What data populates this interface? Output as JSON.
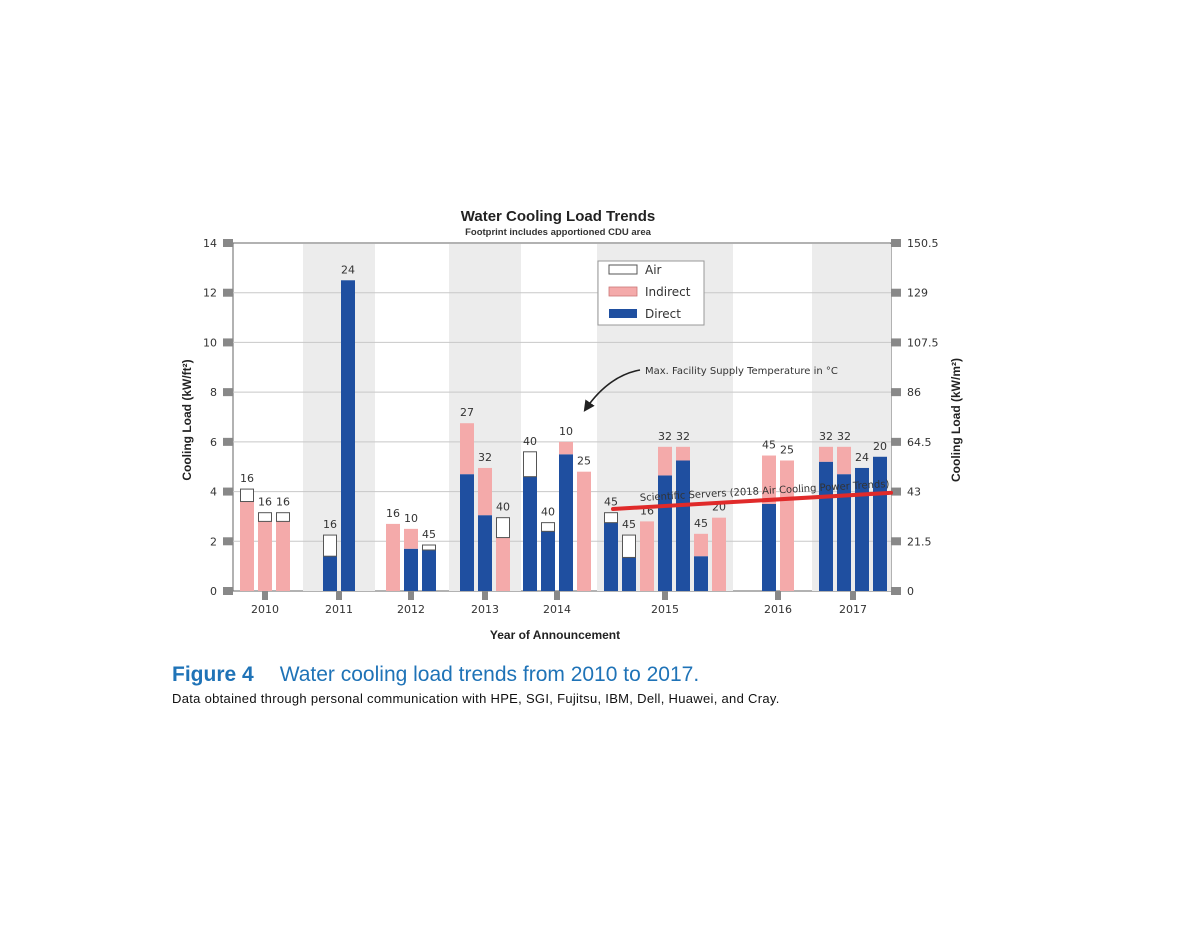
{
  "chart_data": {
    "type": "bar",
    "title": "Water Cooling Load Trends",
    "subtitle": "Footprint includes apportioned CDU area",
    "xlabel": "Year of Announcement",
    "ylabel_left": "Cooling Load (kW/ft²)",
    "ylabel_right": "Cooling Load (kW/m²)",
    "ylim": [
      0,
      14
    ],
    "yticks_left": [
      "0",
      "2",
      "4",
      "6",
      "8",
      "10",
      "12",
      "14"
    ],
    "yticks_right": [
      "0",
      "21.5",
      "43",
      "64.5",
      "86",
      "107.5",
      "129",
      "150.5"
    ],
    "years": [
      "2010",
      "2011",
      "2012",
      "2013",
      "2014",
      "2015",
      "2016",
      "2017"
    ],
    "legend": [
      {
        "name": "Air",
        "color": "#ffffff"
      },
      {
        "name": "Indirect",
        "color": "#f4aaaa"
      },
      {
        "name": "Direct",
        "color": "#1f4fa0"
      }
    ],
    "legend_placement": "top-center",
    "grid": "horizontal",
    "series_colors": {
      "air": "#ffffff",
      "indirect": "#f4aaaa",
      "direct": "#1f4fa0"
    },
    "bars": [
      {
        "year": "2010",
        "label": "16",
        "direct": 0,
        "indirect": 3.6,
        "air": 0.5
      },
      {
        "year": "2010",
        "label": "16",
        "direct": 0,
        "indirect": 2.8,
        "air": 0.35
      },
      {
        "year": "2010",
        "label": "16",
        "direct": 0,
        "indirect": 2.8,
        "air": 0.35
      },
      {
        "year": "2011",
        "label": "16",
        "direct": 1.4,
        "indirect": 0,
        "air": 0.85
      },
      {
        "year": "2011",
        "label": "24",
        "direct": 12.5,
        "indirect": 0,
        "air": 0
      },
      {
        "year": "2012",
        "label": "16",
        "direct": 0,
        "indirect": 2.7,
        "air": 0
      },
      {
        "year": "2012",
        "label": "10",
        "direct": 1.7,
        "indirect": 0.8,
        "air": 0
      },
      {
        "year": "2012",
        "label": "45",
        "direct": 1.65,
        "indirect": 0,
        "air": 0.2
      },
      {
        "year": "2013",
        "label": "27",
        "direct": 4.7,
        "indirect": 2.05,
        "air": 0
      },
      {
        "year": "2013",
        "label": "32",
        "direct": 3.05,
        "indirect": 1.9,
        "air": 0
      },
      {
        "year": "2013",
        "label": "40",
        "direct": 0,
        "indirect": 2.15,
        "air": 0.8
      },
      {
        "year": "2014",
        "label": "40",
        "direct": 4.6,
        "indirect": 0,
        "air": 1.0
      },
      {
        "year": "2014",
        "label": "40",
        "direct": 2.4,
        "indirect": 0,
        "air": 0.35
      },
      {
        "year": "2014",
        "label": "10",
        "direct": 5.5,
        "indirect": 0.5,
        "air": 0
      },
      {
        "year": "2014",
        "label": "25",
        "direct": 0,
        "indirect": 4.8,
        "air": 0
      },
      {
        "year": "2015",
        "label": "45",
        "direct": 2.75,
        "indirect": 0,
        "air": 0.4
      },
      {
        "year": "2015",
        "label": "45",
        "direct": 1.35,
        "indirect": 0,
        "air": 0.9
      },
      {
        "year": "2015",
        "label": "16",
        "direct": 0,
        "indirect": 2.8,
        "air": 0
      },
      {
        "year": "2015",
        "label": "32",
        "direct": 4.65,
        "indirect": 1.15,
        "air": 0
      },
      {
        "year": "2015",
        "label": "32",
        "direct": 5.25,
        "indirect": 0.55,
        "air": 0
      },
      {
        "year": "2015",
        "label": "45",
        "direct": 1.4,
        "indirect": 0.9,
        "air": 0
      },
      {
        "year": "2015",
        "label": "20",
        "direct": 0,
        "indirect": 2.95,
        "air": 0
      },
      {
        "year": "2016",
        "label": "45",
        "direct": 3.5,
        "indirect": 1.95,
        "air": 0
      },
      {
        "year": "2016",
        "label": "25",
        "direct": 0,
        "indirect": 5.25,
        "air": 0
      },
      {
        "year": "2017",
        "label": "32",
        "direct": 5.2,
        "indirect": 0.6,
        "air": 0
      },
      {
        "year": "2017",
        "label": "32",
        "direct": 4.7,
        "indirect": 1.1,
        "air": 0
      },
      {
        "year": "2017",
        "label": "24",
        "direct": 4.95,
        "indirect": 0,
        "air": 0
      },
      {
        "year": "2017",
        "label": "20",
        "direct": 5.4,
        "indirect": 0,
        "air": 0
      }
    ],
    "trend_line": {
      "label": "Scientific Servers (2018 Air Cooling Power Trends)",
      "color": "#e02a2a",
      "start_year": "2014",
      "end_year": "2017",
      "y_start": 3.3,
      "y_end": 3.95
    },
    "annotation": "Max. Facility Supply Temperature in °C"
  },
  "caption": {
    "figure_number": "Figure 4",
    "title": "Water cooling load trends from 2010 to 2017.",
    "note": "Data obtained through personal communication with HPE, SGI, Fujitsu, IBM, Dell, Huawei, and Cray."
  }
}
